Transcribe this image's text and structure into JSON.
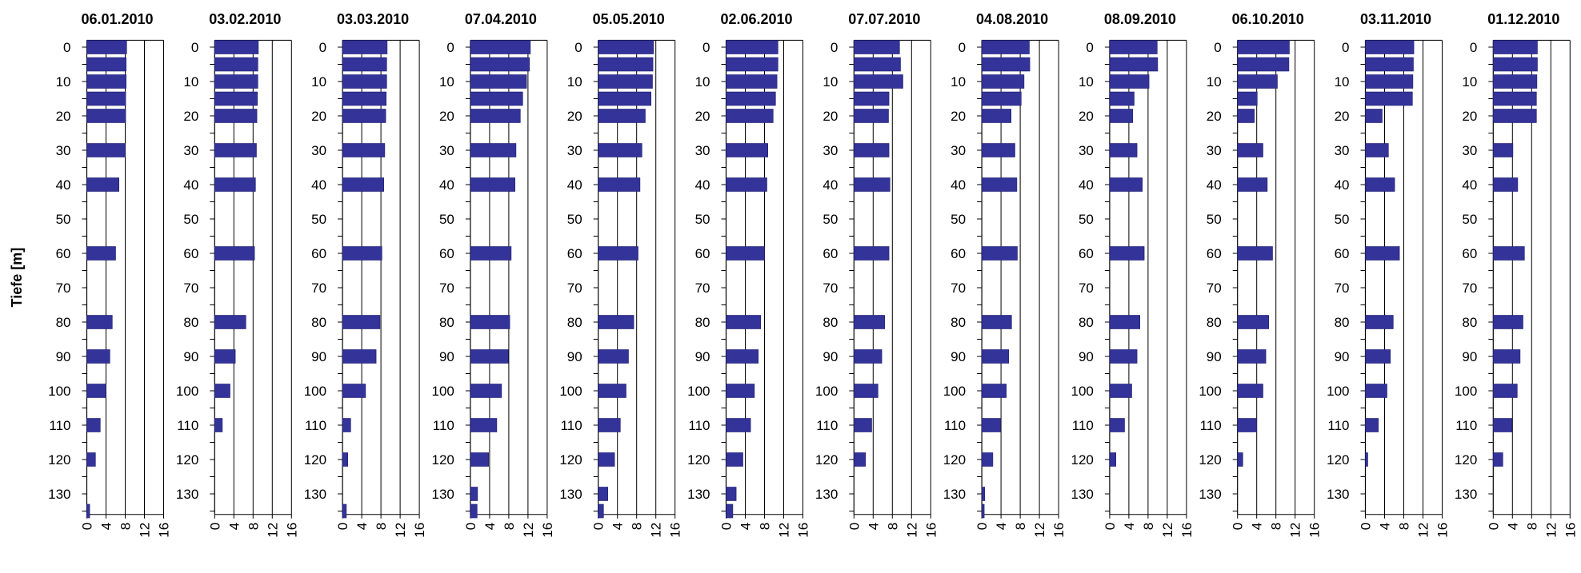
{
  "chart_data": {
    "type": "bar",
    "orientation": "horizontal",
    "ylabel": "Tiefe [m]",
    "x_ticks": [
      0,
      4,
      8,
      12,
      16
    ],
    "xlim": [
      0,
      16
    ],
    "ylim": [
      -2,
      136
    ],
    "y_ticks": [
      0,
      10,
      20,
      30,
      40,
      50,
      60,
      70,
      80,
      90,
      100,
      110,
      120,
      130
    ],
    "bar_color": "#333399",
    "grid": "vertical",
    "panels": [
      {
        "title": "06.01.2010",
        "depths": [
          0,
          5,
          10,
          15,
          20,
          30,
          40,
          60,
          80,
          90,
          100,
          110,
          120,
          135
        ],
        "values": [
          8.3,
          8.2,
          8.2,
          8.1,
          8.1,
          8.0,
          6.7,
          6.0,
          5.3,
          4.8,
          4.0,
          2.8,
          1.8,
          0.6
        ]
      },
      {
        "title": "03.02.2010",
        "depths": [
          0,
          5,
          10,
          15,
          20,
          30,
          40,
          60,
          80,
          90,
          100,
          110
        ],
        "values": [
          9.1,
          9.0,
          9.0,
          8.9,
          8.8,
          8.7,
          8.5,
          8.3,
          6.5,
          4.3,
          3.2,
          1.6
        ]
      },
      {
        "title": "03.03.2010",
        "depths": [
          0,
          5,
          10,
          15,
          20,
          30,
          40,
          60,
          80,
          90,
          100,
          110,
          120,
          135
        ],
        "values": [
          9.3,
          9.2,
          9.2,
          9.1,
          9.0,
          8.8,
          8.6,
          8.2,
          7.8,
          7.0,
          4.8,
          1.7,
          1.1,
          0.8
        ]
      },
      {
        "title": "07.04.2010",
        "depths": [
          0,
          5,
          10,
          15,
          20,
          30,
          40,
          60,
          80,
          90,
          100,
          110,
          120,
          130,
          135
        ],
        "values": [
          12.5,
          12.3,
          11.7,
          10.9,
          10.4,
          9.5,
          9.3,
          8.5,
          8.2,
          7.9,
          6.5,
          5.5,
          3.8,
          1.5,
          1.4
        ]
      },
      {
        "title": "05.05.2010",
        "depths": [
          0,
          5,
          10,
          15,
          20,
          30,
          40,
          60,
          80,
          90,
          100,
          110,
          120,
          130,
          135
        ],
        "values": [
          11.5,
          11.4,
          11.3,
          11.0,
          9.8,
          9.1,
          8.7,
          8.3,
          7.4,
          6.3,
          5.8,
          4.6,
          3.4,
          2.0,
          1.1
        ]
      },
      {
        "title": "02.06.2010",
        "depths": [
          0,
          5,
          10,
          15,
          20,
          30,
          40,
          60,
          80,
          90,
          100,
          110,
          120,
          130,
          135
        ],
        "values": [
          10.8,
          10.8,
          10.6,
          10.3,
          9.8,
          8.7,
          8.5,
          8.0,
          7.2,
          6.7,
          5.9,
          5.1,
          3.5,
          2.1,
          1.4
        ]
      },
      {
        "title": "07.07.2010",
        "depths": [
          0,
          5,
          10,
          15,
          20,
          30,
          40,
          60,
          80,
          90,
          100,
          110,
          120
        ],
        "values": [
          9.5,
          9.7,
          10.2,
          7.3,
          7.2,
          7.3,
          7.5,
          7.3,
          6.4,
          5.8,
          5.0,
          3.7,
          2.4
        ]
      },
      {
        "title": "04.08.2010",
        "depths": [
          0,
          5,
          10,
          15,
          20,
          30,
          40,
          60,
          80,
          90,
          100,
          110,
          120,
          130,
          135
        ],
        "values": [
          9.9,
          10.0,
          8.8,
          8.2,
          6.1,
          6.9,
          7.3,
          7.4,
          6.2,
          5.6,
          5.1,
          3.9,
          2.3,
          0.6,
          0.5
        ]
      },
      {
        "title": "08.09.2010",
        "depths": [
          0,
          5,
          10,
          15,
          20,
          30,
          40,
          60,
          80,
          90,
          100,
          110,
          120
        ],
        "values": [
          9.9,
          10.0,
          8.2,
          5.1,
          4.8,
          5.7,
          6.8,
          7.2,
          6.3,
          5.7,
          4.6,
          3.1,
          1.3
        ]
      },
      {
        "title": "06.10.2010",
        "depths": [
          0,
          5,
          10,
          15,
          20,
          30,
          40,
          60,
          80,
          90,
          100,
          110,
          120
        ],
        "values": [
          10.8,
          10.7,
          8.3,
          4.1,
          3.5,
          5.3,
          6.2,
          7.3,
          6.5,
          5.9,
          5.3,
          4.0,
          1.1
        ]
      },
      {
        "title": "03.11.2010",
        "depths": [
          0,
          5,
          10,
          15,
          20,
          30,
          40,
          60,
          80,
          90,
          100,
          110,
          120
        ],
        "values": [
          10.1,
          10.0,
          9.9,
          9.8,
          3.5,
          4.8,
          6.1,
          7.1,
          5.8,
          5.2,
          4.5,
          2.7,
          0.5
        ]
      },
      {
        "title": "01.12.2010",
        "depths": [
          0,
          5,
          10,
          15,
          20,
          30,
          40,
          60,
          80,
          90,
          100,
          110,
          120
        ],
        "values": [
          9.2,
          9.2,
          9.1,
          9.0,
          9.0,
          4.1,
          5.1,
          6.5,
          6.2,
          5.6,
          5.0,
          3.9,
          2.0
        ]
      }
    ]
  }
}
